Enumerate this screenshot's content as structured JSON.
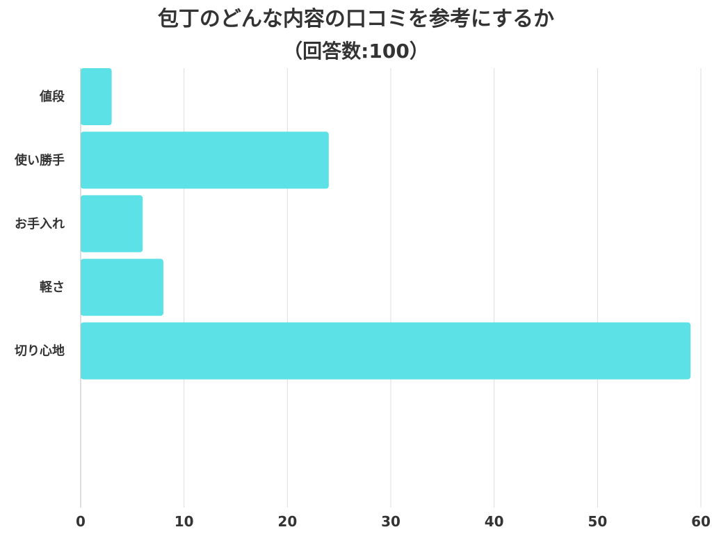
{
  "chart_data": {
    "type": "bar",
    "orientation": "horizontal",
    "title": "包丁のどんな内容の口コミを参考にするか",
    "subtitle": "（回答数:100）",
    "categories": [
      "値段",
      "使い勝手",
      "お手入れ",
      "軽さ",
      "切り心地"
    ],
    "values": [
      3,
      24,
      6,
      8,
      59
    ],
    "xlim": [
      0,
      60
    ],
    "xticks": [
      0,
      10,
      20,
      30,
      40,
      50,
      60
    ],
    "grid": true,
    "bar_color": "#5ce1e6",
    "xlabel": "",
    "ylabel": ""
  }
}
